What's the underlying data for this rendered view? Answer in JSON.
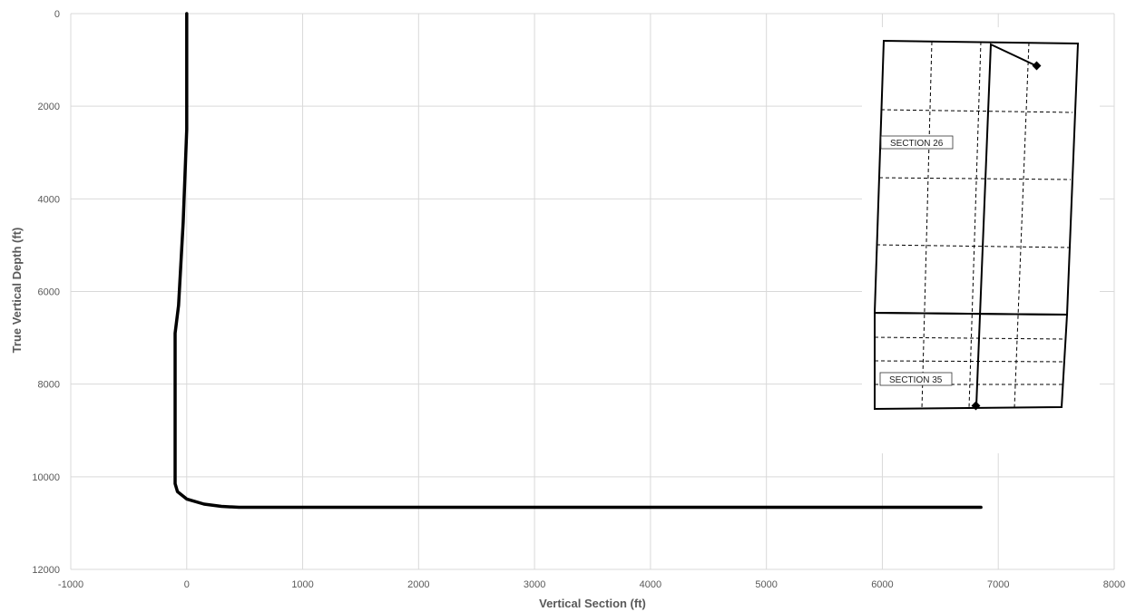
{
  "chart_data": {
    "type": "line",
    "title": "",
    "xlabel": "Vertical Section (ft)",
    "ylabel": "True Vertical Depth (ft)",
    "xlim": [
      -1000,
      8000
    ],
    "ylim": [
      0,
      12000
    ],
    "y_inverted": true,
    "x_ticks": [
      "-1000",
      "0",
      "1000",
      "2000",
      "3000",
      "4000",
      "5000",
      "6000",
      "7000",
      "8000"
    ],
    "y_ticks": [
      "0",
      "2000",
      "4000",
      "6000",
      "8000",
      "10000",
      "12000"
    ],
    "grid": true,
    "series": [
      {
        "points": [
          [
            0,
            0
          ],
          [
            0,
            2500
          ],
          [
            -30,
            4500
          ],
          [
            -70,
            6300
          ],
          [
            -100,
            6900
          ],
          [
            -100,
            10150
          ],
          [
            -80,
            10320
          ],
          [
            0,
            10480
          ],
          [
            150,
            10590
          ],
          [
            300,
            10640
          ],
          [
            450,
            10660
          ],
          [
            6850,
            10660
          ]
        ]
      }
    ],
    "inset_map": {
      "section_labels": [
        "SECTION 26",
        "SECTION 35"
      ]
    }
  }
}
